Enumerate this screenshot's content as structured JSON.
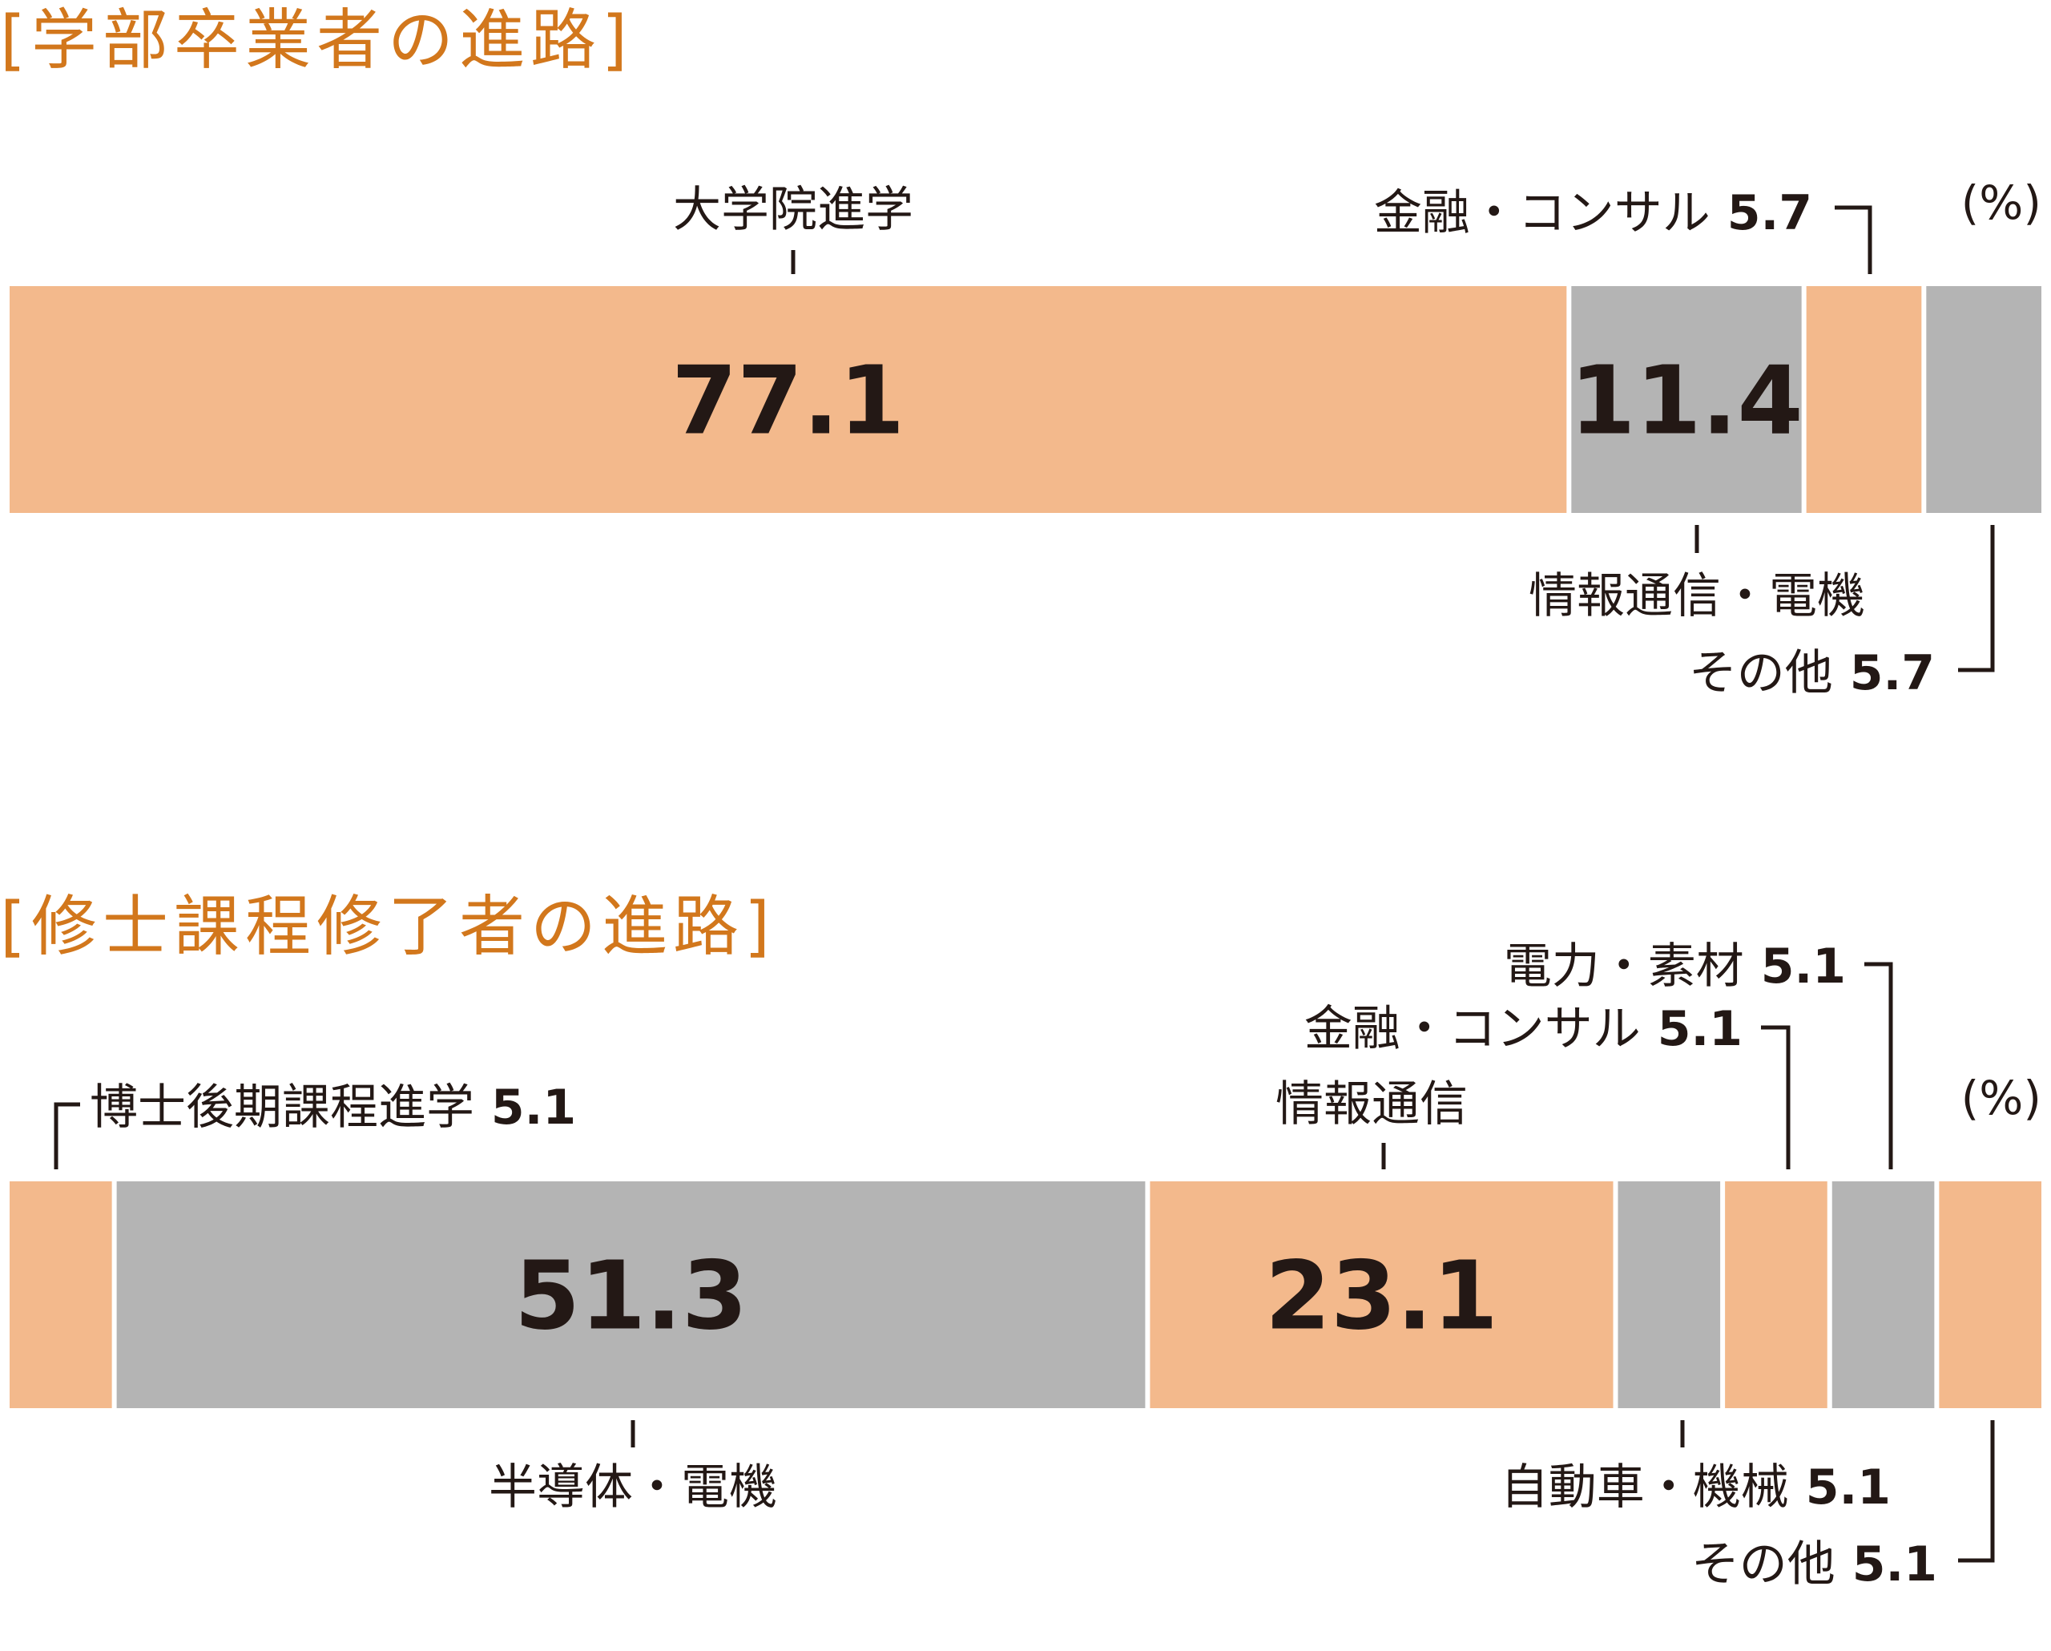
{
  "chart_data": [
    {
      "type": "bar",
      "orientation": "horizontal-stacked",
      "title": "[学部卒業者の進路]",
      "unit": "(%)",
      "segments": [
        {
          "label": "大学院進学",
          "value": 77.1,
          "color": "#f3b98c",
          "value_text": "77.1",
          "label_position": "above"
        },
        {
          "label": "情報通信・電機",
          "value": 11.4,
          "color": "#b4b4b4",
          "value_text": "11.4",
          "label_position": "below"
        },
        {
          "label": "金融・コンサル",
          "value": 5.7,
          "color": "#f3b98c",
          "value_text": "5.7",
          "label_position": "above"
        },
        {
          "label": "その他",
          "value": 5.7,
          "color": "#b4b4b4",
          "value_text": "5.7",
          "label_position": "below"
        }
      ]
    },
    {
      "type": "bar",
      "orientation": "horizontal-stacked",
      "title": "[修士課程修了者の進路]",
      "unit": "(%)",
      "segments": [
        {
          "label": "博士後期課程進学",
          "value": 5.1,
          "color": "#f3b98c",
          "value_text": "5.1",
          "label_position": "above"
        },
        {
          "label": "半導体・電機",
          "value": 51.3,
          "color": "#b4b4b4",
          "value_text": "51.3",
          "label_position": "below"
        },
        {
          "label": "情報通信",
          "value": 23.1,
          "color": "#f3b98c",
          "value_text": "23.1",
          "label_position": "above"
        },
        {
          "label": "自動車・機械",
          "value": 5.1,
          "color": "#b4b4b4",
          "value_text": "5.1",
          "label_position": "below"
        },
        {
          "label": "金融・コンサル",
          "value": 5.1,
          "color": "#f3b98c",
          "value_text": "5.1",
          "label_position": "above"
        },
        {
          "label": "電力・素材",
          "value": 5.1,
          "color": "#b4b4b4",
          "value_text": "5.1",
          "label_position": "above"
        },
        {
          "label": "その他",
          "value": 5.1,
          "color": "#f3b98c",
          "value_text": "5.1",
          "label_position": "below"
        }
      ]
    }
  ]
}
